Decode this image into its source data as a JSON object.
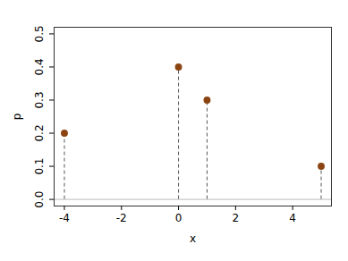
{
  "chart_data": {
    "type": "stem",
    "x_label": "x",
    "y_label": "p",
    "x": [
      -4,
      0,
      1,
      5
    ],
    "values": [
      0.2,
      0.4,
      0.3,
      0.1
    ],
    "color": "#8b4513",
    "marker": "circle",
    "line_style": "dashed",
    "xlim": [
      -4.36,
      5.36
    ],
    "xticks": [
      -4,
      -2,
      0,
      2,
      4
    ],
    "ylim": [
      -0.02,
      0.52
    ],
    "yticks": [
      {
        "value": 0,
        "label": "0.0"
      },
      0.1,
      0.2,
      0.3,
      0.4,
      0.5
    ],
    "grid": false
  }
}
